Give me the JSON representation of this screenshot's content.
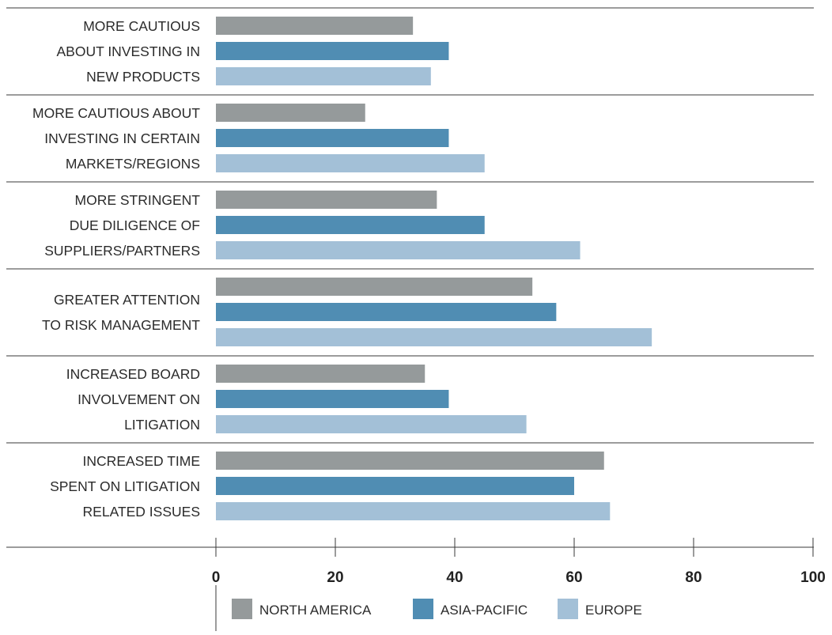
{
  "chart_data": {
    "type": "bar",
    "orientation": "horizontal",
    "categories": [
      [
        "MORE CAUTIOUS",
        "ABOUT INVESTING IN",
        "NEW PRODUCTS"
      ],
      [
        "MORE CAUTIOUS ABOUT",
        "INVESTING IN CERTAIN",
        "MARKETS/REGIONS"
      ],
      [
        "MORE STRINGENT",
        "DUE DILIGENCE OF",
        "SUPPLIERS/PARTNERS"
      ],
      [
        "GREATER ATTENTION",
        "TO RISK MANAGEMENT"
      ],
      [
        "INCREASED BOARD",
        "INVOLVEMENT ON",
        "LITIGATION"
      ],
      [
        "INCREASED TIME",
        "SPENT ON LITIGATION",
        "RELATED ISSUES"
      ]
    ],
    "series": [
      {
        "name": "NORTH AMERICA",
        "color": "#959a9b",
        "values": [
          33,
          25,
          37,
          53,
          35,
          65
        ]
      },
      {
        "name": "ASIA-PACIFIC",
        "color": "#508db3",
        "values": [
          39,
          39,
          45,
          57,
          39,
          60
        ]
      },
      {
        "name": "EUROPE",
        "color": "#a3c0d7",
        "values": [
          36,
          45,
          61,
          73,
          52,
          66
        ]
      }
    ],
    "xlim": [
      0,
      100
    ],
    "xticks": [
      "0",
      "20",
      "40",
      "60",
      "80",
      "100"
    ],
    "grid": false,
    "legend_position": "bottom"
  }
}
